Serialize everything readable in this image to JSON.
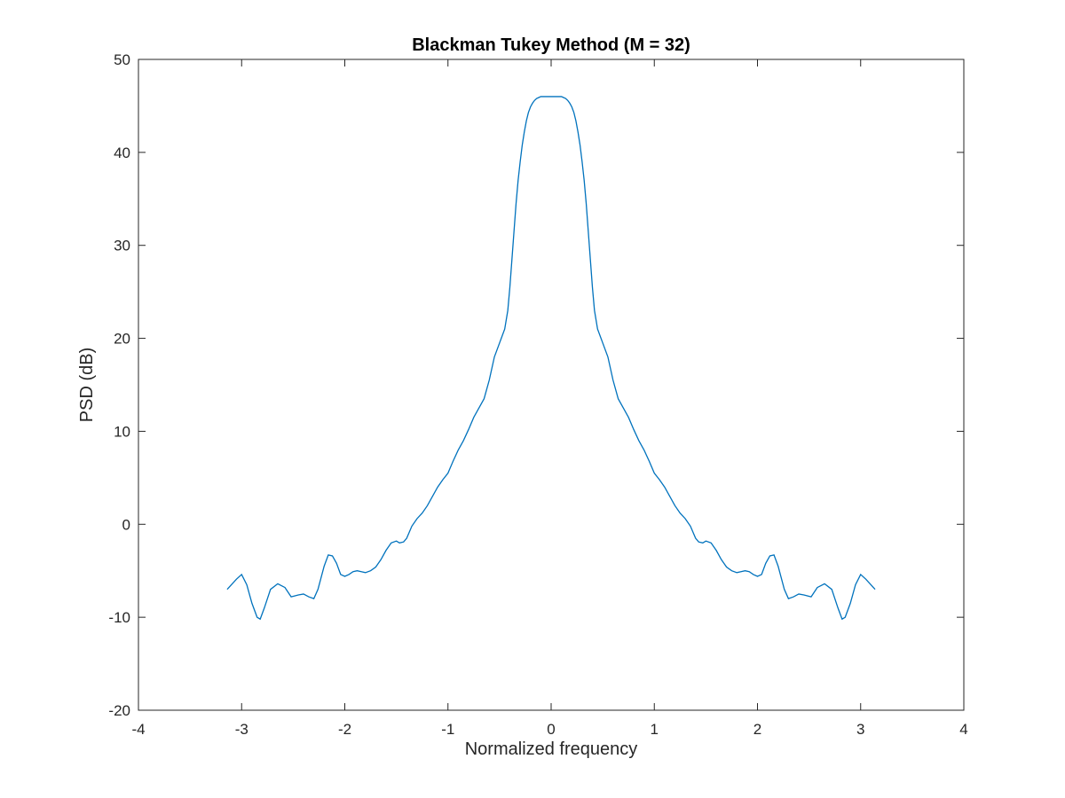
{
  "chart_data": {
    "type": "line",
    "title": "Blackman Tukey Method (M = 32)",
    "xlabel": "Normalized frequency",
    "ylabel": "PSD (dB)",
    "xlim": [
      -4,
      4
    ],
    "ylim": [
      -20,
      50
    ],
    "xticks": [
      -4,
      -3,
      -2,
      -1,
      0,
      1,
      2,
      3,
      4
    ],
    "yticks": [
      -20,
      -10,
      0,
      10,
      20,
      30,
      40,
      50
    ],
    "xtick_labels": [
      "-4",
      "-3",
      "-2",
      "-1",
      "0",
      "1",
      "2",
      "3",
      "4"
    ],
    "ytick_labels": [
      "-20",
      "-10",
      "0",
      "10",
      "20",
      "30",
      "40",
      "50"
    ],
    "grid": false,
    "legend": "none",
    "series": [
      {
        "color": "#0072BD",
        "x": [
          -3.14,
          -3.05,
          -3.0,
          -2.95,
          -2.9,
          -2.85,
          -2.82,
          -2.78,
          -2.72,
          -2.65,
          -2.58,
          -2.52,
          -2.45,
          -2.4,
          -2.35,
          -2.3,
          -2.26,
          -2.2,
          -2.16,
          -2.12,
          -2.08,
          -2.04,
          -2.0,
          -1.96,
          -1.92,
          -1.88,
          -1.84,
          -1.8,
          -1.75,
          -1.7,
          -1.65,
          -1.6,
          -1.55,
          -1.5,
          -1.47,
          -1.43,
          -1.4,
          -1.35,
          -1.3,
          -1.25,
          -1.2,
          -1.15,
          -1.1,
          -1.05,
          -1.0,
          -0.95,
          -0.9,
          -0.85,
          -0.8,
          -0.75,
          -0.7,
          -0.65,
          -0.6,
          -0.55,
          -0.5,
          -0.45,
          -0.42,
          -0.4,
          -0.38,
          -0.36,
          -0.34,
          -0.32,
          -0.3,
          -0.28,
          -0.26,
          -0.24,
          -0.22,
          -0.2,
          -0.18,
          -0.16,
          -0.14,
          -0.12,
          -0.1,
          -0.08,
          -0.06,
          -0.04,
          -0.02,
          0.0,
          0.02,
          0.04,
          0.06,
          0.08,
          0.1,
          0.12,
          0.14,
          0.16,
          0.18,
          0.2,
          0.22,
          0.24,
          0.26,
          0.28,
          0.3,
          0.32,
          0.34,
          0.36,
          0.38,
          0.4,
          0.42,
          0.45,
          0.5,
          0.55,
          0.6,
          0.65,
          0.7,
          0.75,
          0.8,
          0.85,
          0.9,
          0.95,
          1.0,
          1.05,
          1.1,
          1.15,
          1.2,
          1.25,
          1.3,
          1.35,
          1.4,
          1.43,
          1.47,
          1.5,
          1.55,
          1.6,
          1.65,
          1.7,
          1.75,
          1.8,
          1.84,
          1.88,
          1.92,
          1.96,
          2.0,
          2.04,
          2.08,
          2.12,
          2.16,
          2.2,
          2.26,
          2.3,
          2.35,
          2.4,
          2.45,
          2.52,
          2.58,
          2.65,
          2.72,
          2.78,
          2.82,
          2.85,
          2.9,
          2.95,
          3.0,
          3.05,
          3.14
        ],
        "y": [
          -7.0,
          -5.9,
          -5.4,
          -6.5,
          -8.5,
          -10.0,
          -10.2,
          -9.0,
          -7.0,
          -6.4,
          -6.8,
          -7.8,
          -7.6,
          -7.5,
          -7.8,
          -8.0,
          -7.0,
          -4.5,
          -3.3,
          -3.4,
          -4.2,
          -5.4,
          -5.6,
          -5.4,
          -5.1,
          -5.0,
          -5.1,
          -5.2,
          -5.0,
          -4.6,
          -3.8,
          -2.8,
          -2.0,
          -1.8,
          -2.0,
          -1.9,
          -1.5,
          -0.2,
          0.6,
          1.2,
          2.0,
          3.0,
          4.0,
          4.8,
          5.5,
          6.8,
          8.0,
          9.0,
          10.2,
          11.5,
          12.5,
          13.5,
          15.5,
          18.0,
          19.5,
          21.0,
          23.0,
          25.5,
          28.5,
          31.5,
          34.5,
          37.0,
          39.0,
          40.8,
          42.2,
          43.4,
          44.3,
          44.9,
          45.3,
          45.6,
          45.8,
          45.9,
          46.0,
          46.0,
          46.0,
          46.0,
          46.0,
          46.0,
          46.0,
          46.0,
          46.0,
          46.0,
          46.0,
          45.9,
          45.8,
          45.6,
          45.3,
          44.9,
          44.3,
          43.4,
          42.2,
          40.8,
          39.0,
          37.0,
          34.5,
          31.5,
          28.5,
          25.5,
          23.0,
          21.0,
          19.5,
          18.0,
          15.5,
          13.5,
          12.5,
          11.5,
          10.2,
          9.0,
          8.0,
          6.8,
          5.5,
          4.8,
          4.0,
          3.0,
          2.0,
          1.2,
          0.6,
          -0.2,
          -1.5,
          -1.9,
          -2.0,
          -1.8,
          -2.0,
          -2.8,
          -3.8,
          -4.6,
          -5.0,
          -5.2,
          -5.1,
          -5.0,
          -5.1,
          -5.4,
          -5.6,
          -5.4,
          -4.2,
          -3.4,
          -3.3,
          -4.5,
          -7.0,
          -8.0,
          -7.8,
          -7.5,
          -7.6,
          -7.8,
          -6.8,
          -6.4,
          -7.0,
          -9.0,
          -10.2,
          -10.0,
          -8.5,
          -6.5,
          -5.4,
          -5.9,
          -7.0
        ]
      }
    ]
  }
}
